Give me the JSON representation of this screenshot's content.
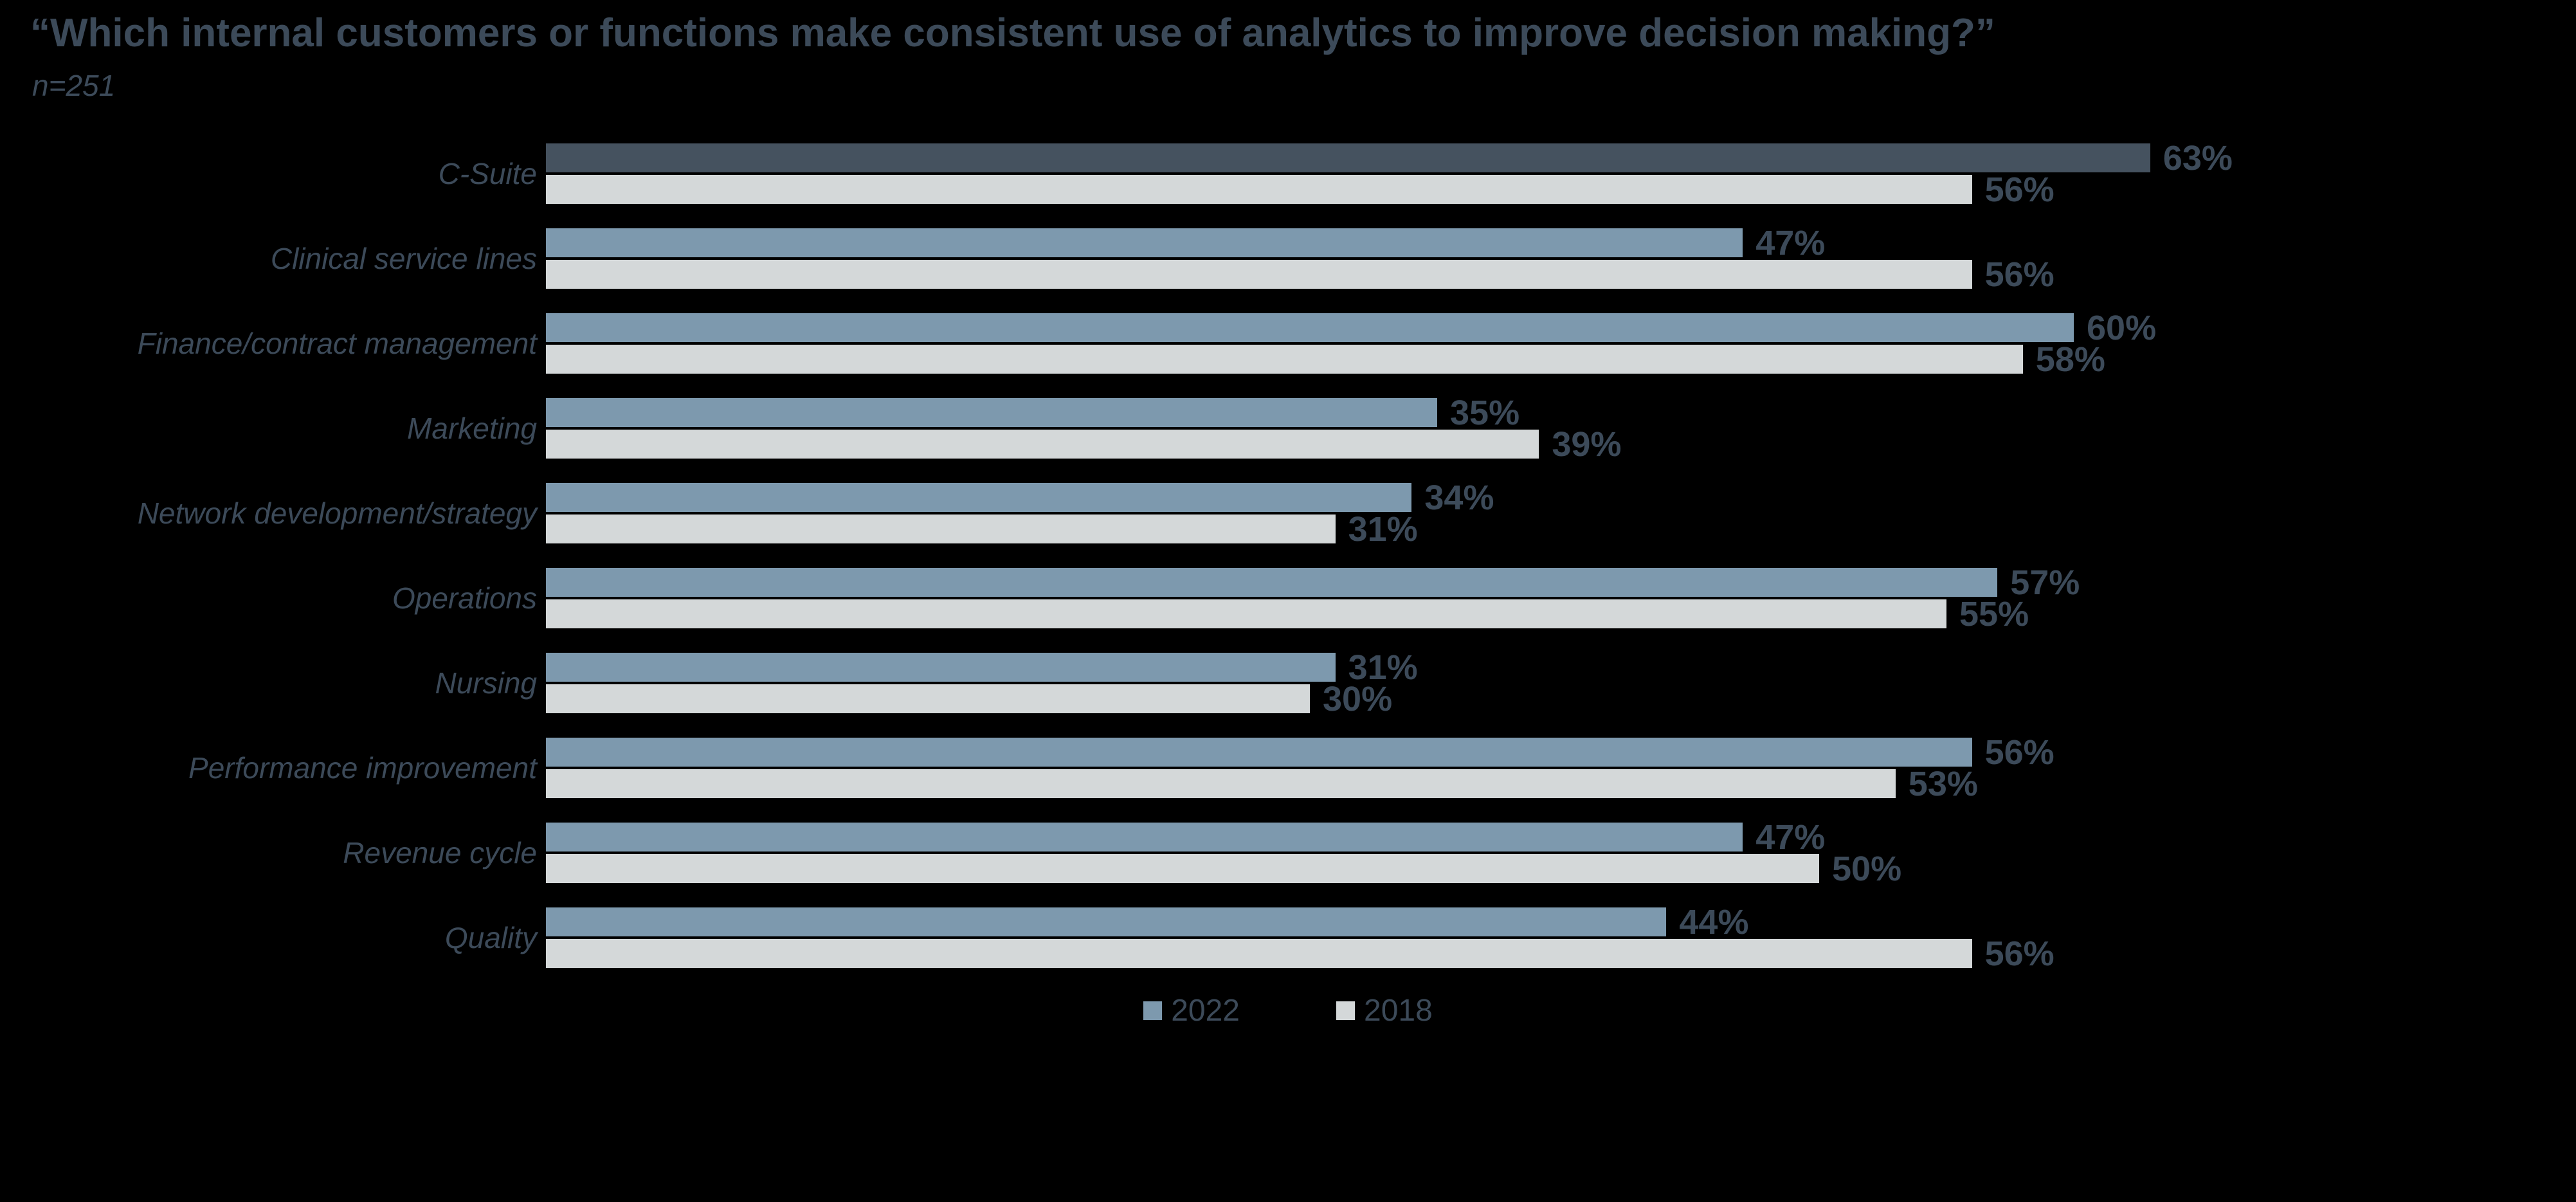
{
  "slide": {
    "title": "“Which internal customers or functions make consistent use of analytics to improve decision making?”",
    "sample_size": "n=251",
    "background_color": "#000000",
    "text_color": "#3c4a59"
  },
  "legend": {
    "items": [
      {
        "label": "2022",
        "color": "#7d99ae"
      },
      {
        "label": "2018",
        "color": "#d4d8d9"
      }
    ]
  },
  "chart_data": {
    "type": "bar",
    "orientation": "horizontal",
    "title": "“Which internal customers or functions make consistent use of analytics to improve decision making?”",
    "subtitle": "n=251",
    "categories": [
      "C-Suite",
      "Clinical service lines",
      "Finance/contract management",
      "Marketing",
      "Network development/strategy",
      "Operations",
      "Nursing",
      "Performance improvement",
      "Revenue cycle",
      "Quality"
    ],
    "series": [
      {
        "name": "2022",
        "color": "#7d99ae",
        "values": [
          63,
          47,
          60,
          35,
          34,
          57,
          31,
          56,
          47,
          44
        ]
      },
      {
        "name": "2018",
        "color": "#d4d8d9",
        "values": [
          56,
          56,
          58,
          39,
          31,
          55,
          30,
          53,
          50,
          56
        ]
      }
    ],
    "highlight": {
      "category_index": 0,
      "series_index": 0,
      "color": "#45525f"
    },
    "value_suffix": "%",
    "data_labels": true,
    "axis_visible": false,
    "grid": false,
    "xlim": [
      0,
      70
    ],
    "legend_position": "bottom"
  }
}
